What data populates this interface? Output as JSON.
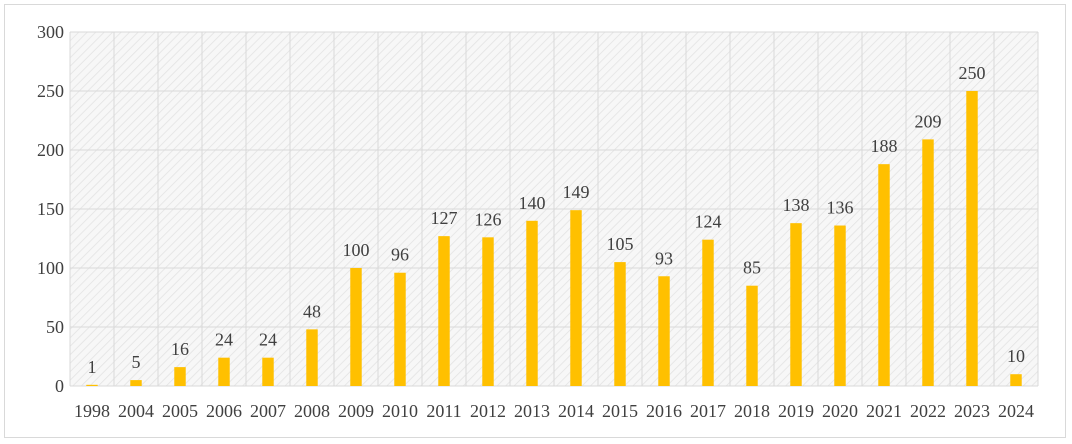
{
  "chart_data": {
    "type": "bar",
    "title": "",
    "xlabel": "",
    "ylabel": "",
    "categories": [
      "1998",
      "2004",
      "2005",
      "2006",
      "2007",
      "2008",
      "2009",
      "2010",
      "2011",
      "2012",
      "2013",
      "2014",
      "2015",
      "2016",
      "2017",
      "2018",
      "2019",
      "2020",
      "2021",
      "2022",
      "2023",
      "2024"
    ],
    "values": [
      1,
      5,
      16,
      24,
      24,
      48,
      100,
      96,
      127,
      126,
      140,
      149,
      105,
      93,
      124,
      85,
      138,
      136,
      188,
      209,
      250,
      10
    ],
    "data_labels": [
      "1",
      "5",
      "16",
      "24",
      "24",
      "48",
      "100",
      "96",
      "127",
      "126",
      "140",
      "149",
      "105",
      "93",
      "124",
      "85",
      "138",
      "136",
      "188",
      "209",
      "250",
      "10"
    ],
    "ylim": [
      0,
      300
    ],
    "yticks": [
      0,
      50,
      100,
      150,
      200,
      250,
      300
    ],
    "ytick_labels": [
      "0",
      "50",
      "100",
      "150",
      "200",
      "250",
      "300"
    ],
    "grid": true,
    "legend": "none",
    "bar_color": "#ffc000",
    "plot_background": "hatched light gray",
    "gridline_color": "#d9d9d9"
  }
}
